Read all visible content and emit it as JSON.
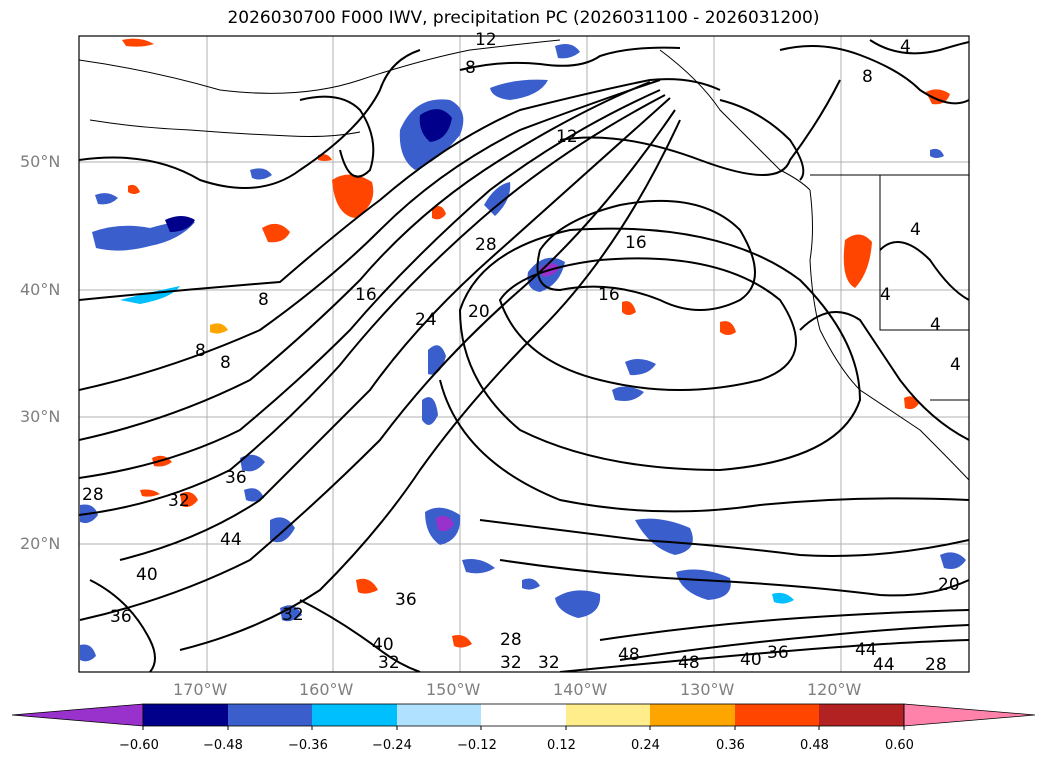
{
  "title": "2026030700 F000 IWV, precipitation PC (2026031100 - 2026031200)",
  "lat_labels": [
    "50°N",
    "40°N",
    "30°N",
    "20°N"
  ],
  "lon_labels": [
    "170°W",
    "160°W",
    "150°W",
    "140°W",
    "130°W",
    "120°W"
  ],
  "contour_labels": [
    "12",
    "8",
    "4",
    "8",
    "12",
    "16",
    "28",
    "16",
    "20",
    "24",
    "16",
    "8",
    "8",
    "8",
    "4",
    "4",
    "4",
    "4",
    "36",
    "32",
    "28",
    "44",
    "40",
    "36",
    "32",
    "36",
    "40",
    "32",
    "28",
    "32",
    "32",
    "48",
    "48",
    "40",
    "36",
    "44",
    "44",
    "28",
    "20"
  ],
  "colorbar": {
    "ticks": [
      "−0.60",
      "−0.48",
      "−0.36",
      "−0.24",
      "−0.12",
      "0.12",
      "0.24",
      "0.36",
      "0.48",
      "0.60"
    ],
    "colors": [
      "#9932cc",
      "#00008b",
      "#3a5fcd",
      "#00bfff",
      "#b0e2ff",
      "#ffffff",
      "#ffec8b",
      "#ffa500",
      "#ff4500",
      "#b22222",
      "#ff82ab"
    ]
  }
}
